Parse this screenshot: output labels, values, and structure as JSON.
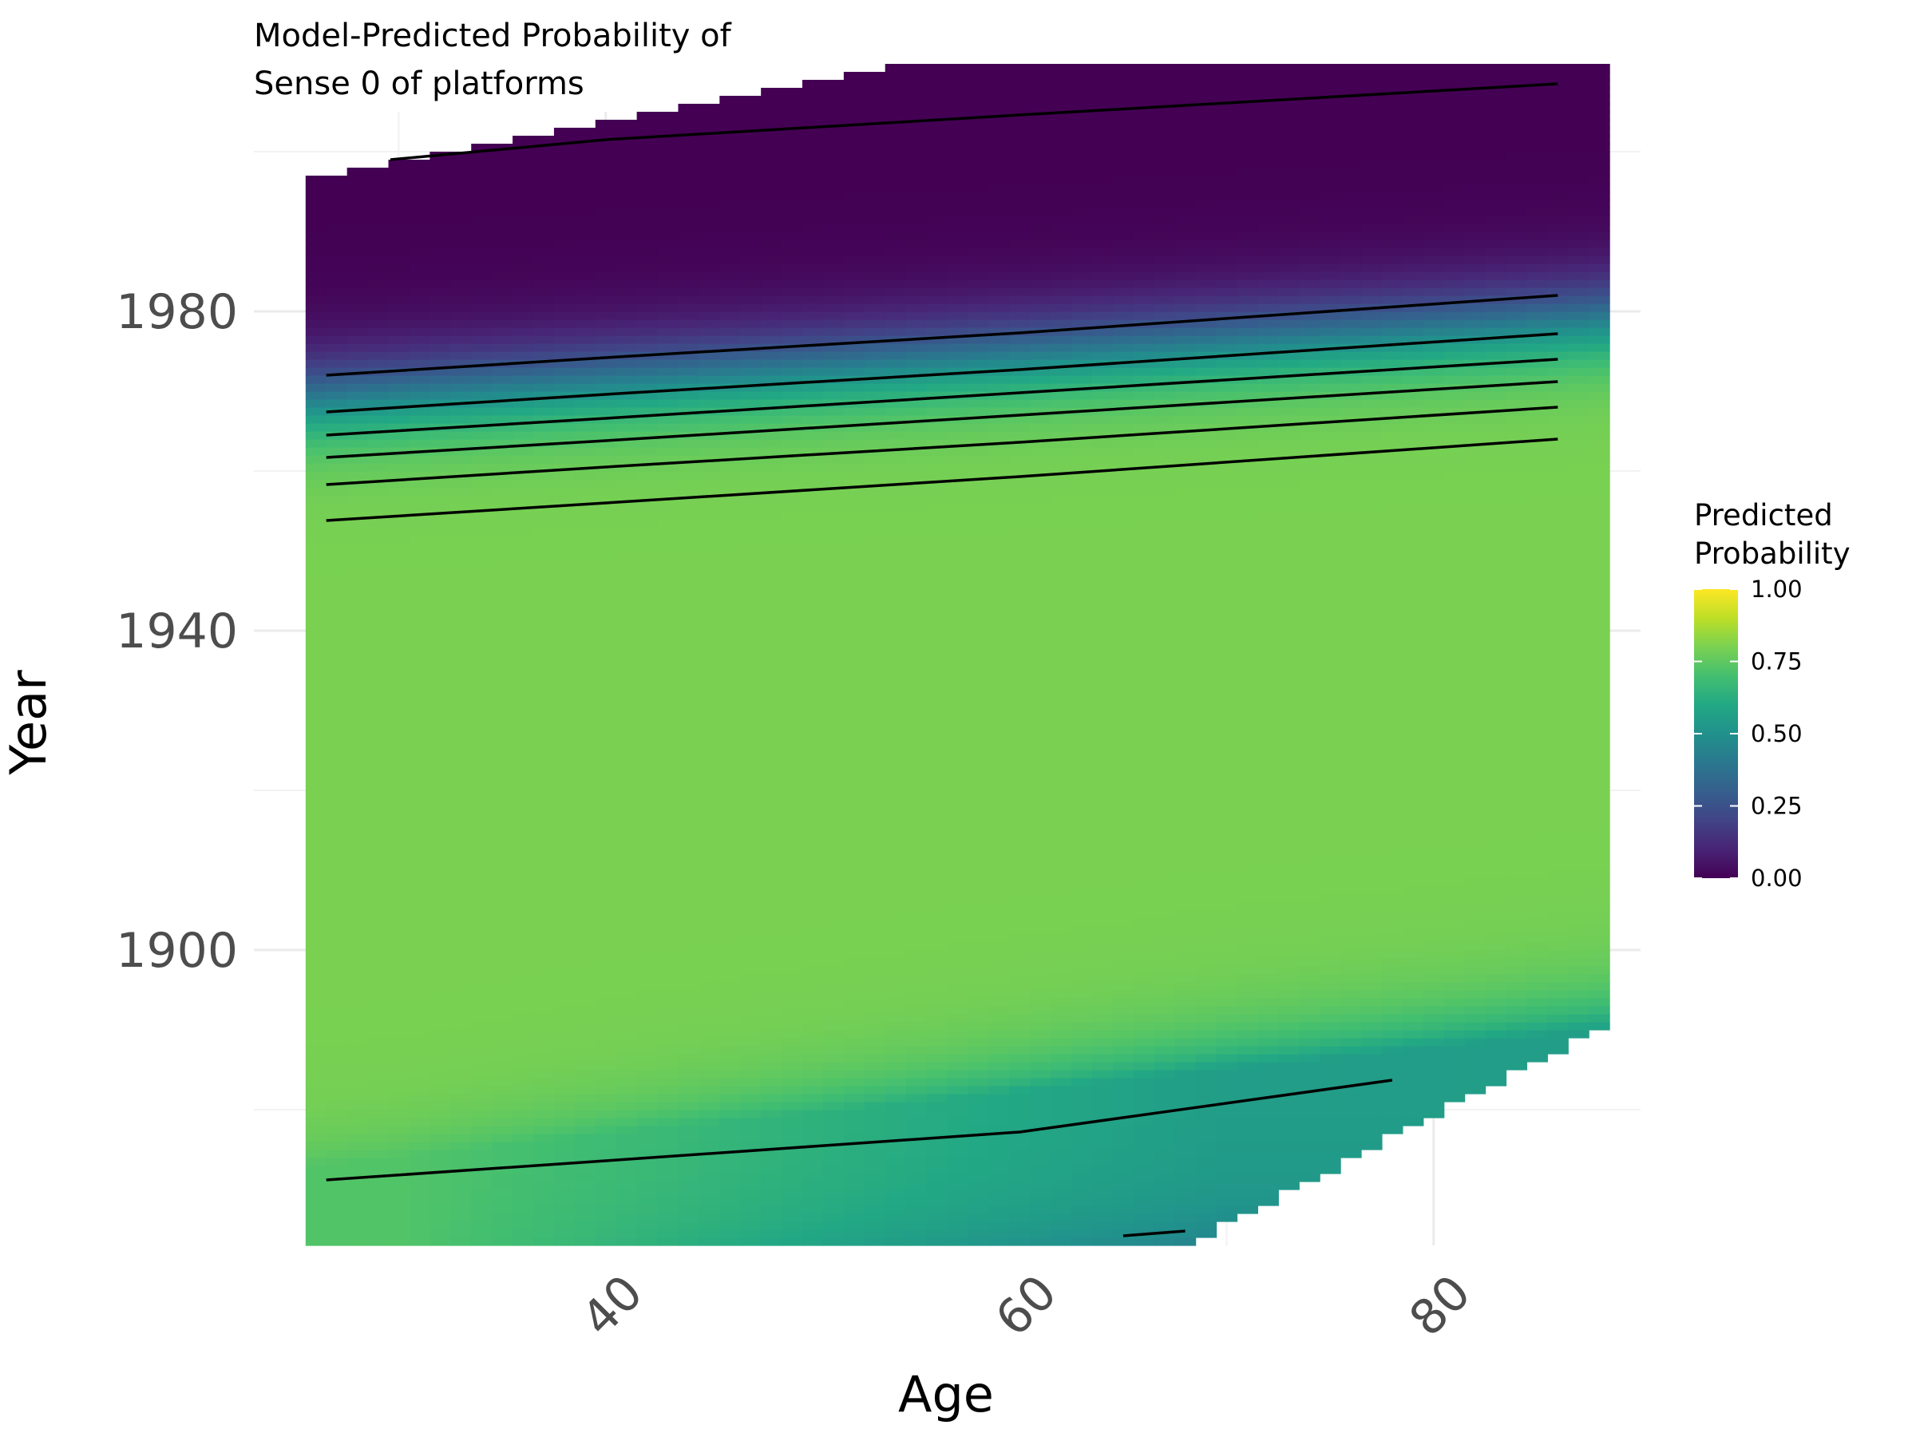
{
  "chart_data": {
    "type": "heatmap",
    "title_line1": "Model-Predicted Probability of",
    "title_line2": "Sense 0 of platforms",
    "xlabel": "Age",
    "ylabel": "Year",
    "xlim": [
      23,
      90
    ],
    "ylim": [
      1863,
      2005
    ],
    "x_ticks": [
      40,
      60,
      80
    ],
    "x_tick_labels": [
      "40",
      "60",
      "80"
    ],
    "y_ticks": [
      1900,
      1940,
      1980
    ],
    "y_tick_labels": [
      "1900",
      "1940",
      "1980"
    ],
    "grid": true,
    "legend": {
      "title_line1": "Predicted",
      "title_line2": "Probability",
      "placement": "right",
      "breaks": [
        0.0,
        0.25,
        0.5,
        0.75,
        1.0
      ],
      "labels": [
        "0.00",
        "0.25",
        "0.50",
        "0.75",
        "1.00"
      ],
      "colormap": "viridis"
    },
    "domain": {
      "age_range": [
        26,
        88
      ],
      "top_year_at_age_min": 1997,
      "top_year_at_age_max": 2011,
      "bottom_year_at_age_min": 1873,
      "bottom_year_at_age_max": 1890
    },
    "surface": {
      "description_model": "logistic in (year - a*age)",
      "plateau": 0.8,
      "midpoint_year_at_age_min": 1969.5,
      "age_slope_years_per_year": 0.16,
      "scale": 3.3,
      "lower_dip_value": 0.63
    },
    "contours": [
      {
        "level": 0.05,
        "points": [
          [
            29.6,
            1999
          ],
          [
            40,
            2001.5
          ],
          [
            60,
            2004.6
          ],
          [
            86,
            2008.5
          ]
        ]
      },
      {
        "level": 0.2,
        "points": [
          [
            26.5,
            1972
          ],
          [
            40,
            1974.2
          ],
          [
            60,
            1977.3
          ],
          [
            86,
            1982
          ]
        ]
      },
      {
        "level": 0.35,
        "points": [
          [
            26.5,
            1967.4
          ],
          [
            40,
            1969.6
          ],
          [
            60,
            1972.7
          ],
          [
            86,
            1977.2
          ]
        ]
      },
      {
        "level": 0.5,
        "points": [
          [
            26.5,
            1964.5
          ],
          [
            40,
            1966.6
          ],
          [
            60,
            1969.8
          ],
          [
            86,
            1974
          ]
        ]
      },
      {
        "level": 0.6,
        "points": [
          [
            26.5,
            1961.7
          ],
          [
            40,
            1963.8
          ],
          [
            60,
            1967
          ],
          [
            86,
            1971.2
          ]
        ]
      },
      {
        "level": 0.7,
        "points": [
          [
            26.5,
            1958.3
          ],
          [
            40,
            1960.5
          ],
          [
            60,
            1963.6
          ],
          [
            86,
            1968
          ]
        ]
      },
      {
        "level": 0.78,
        "points": [
          [
            26.5,
            1953.8
          ],
          [
            40,
            1956
          ],
          [
            60,
            1959.3
          ],
          [
            86,
            1964
          ]
        ]
      },
      {
        "level": 0.78,
        "points": [
          [
            26.5,
            1871.2
          ],
          [
            40,
            1873.6
          ],
          [
            60,
            1877.2
          ],
          [
            78,
            1883.7
          ]
        ]
      },
      {
        "level": 0.7,
        "points": [
          [
            65,
            1864.2
          ],
          [
            68,
            1864.8
          ]
        ]
      }
    ]
  }
}
